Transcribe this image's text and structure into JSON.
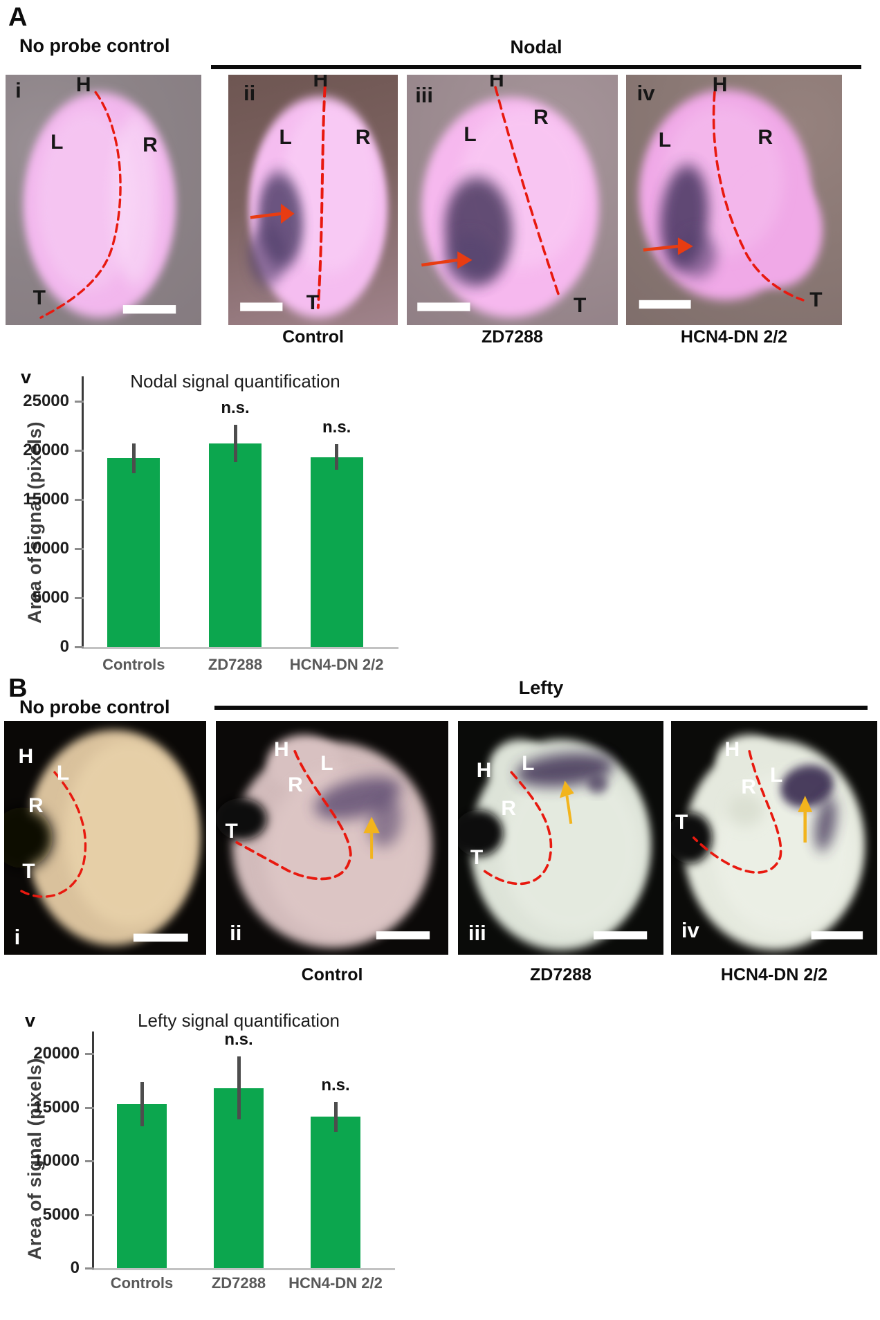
{
  "panel_a": {
    "panel_letter": "A",
    "no_probe_header": "No probe control",
    "group_header": "Nodal",
    "images": [
      {
        "roman": "i",
        "head": "H",
        "left_label": "L",
        "right_label": "R",
        "tail": "T"
      },
      {
        "roman": "ii",
        "head": "H",
        "left_label": "L",
        "right_label": "R",
        "tail": "T"
      },
      {
        "roman": "iii",
        "head": "H",
        "left_label": "L",
        "right_label": "R",
        "tail": "T"
      },
      {
        "roman": "iv",
        "head": "H",
        "left_label": "L",
        "right_label": "R",
        "tail": "T"
      }
    ],
    "captions": [
      "Control",
      "ZD7288",
      "HCN4-DN 2/2"
    ],
    "chart_roman": "v"
  },
  "panel_b": {
    "panel_letter": "B",
    "no_probe_header": "No probe control",
    "group_header": "Lefty",
    "images": [
      {
        "roman": "i",
        "head": "H",
        "left_label": "L",
        "right_label": "R",
        "tail": "T"
      },
      {
        "roman": "ii",
        "head": "H",
        "left_label": "L",
        "right_label": "R",
        "tail": "T"
      },
      {
        "roman": "iii",
        "head": "H",
        "left_label": "L",
        "right_label": "R",
        "tail": "T"
      },
      {
        "roman": "iv",
        "head": "H",
        "left_label": "L",
        "right_label": "R",
        "tail": "T"
      }
    ],
    "captions": [
      "Control",
      "ZD7288",
      "HCN4-DN 2/2"
    ],
    "chart_roman": "v"
  },
  "chart_data": [
    {
      "type": "bar",
      "panel": "A",
      "title": "Nodal signal quantification",
      "ylabel": "Area of signal (pixels)",
      "categories": [
        "Controls",
        "ZD7288",
        "HCN4-DN 2/2"
      ],
      "values": [
        19200,
        20700,
        19300
      ],
      "errors": [
        1500,
        1900,
        1300
      ],
      "significance": [
        "",
        "n.s.",
        "n.s."
      ],
      "ylim": [
        0,
        25000
      ],
      "ytick_step": 5000,
      "grid": false,
      "bar_color": "#0ca64e",
      "error_color": "#4d4d4d"
    },
    {
      "type": "bar",
      "panel": "B",
      "title": "Lefty signal quantification",
      "ylabel": "Area of signal (pixels)",
      "categories": [
        "Controls",
        "ZD7288",
        "HCN4-DN 2/2"
      ],
      "values": [
        15300,
        16800,
        14100
      ],
      "errors": [
        2050,
        2950,
        1400
      ],
      "significance": [
        "",
        "n.s.",
        "n.s."
      ],
      "ylim": [
        0,
        20000
      ],
      "ytick_step": 5000,
      "grid": false,
      "bar_color": "#0ca64e",
      "error_color": "#4d4d4d"
    }
  ]
}
